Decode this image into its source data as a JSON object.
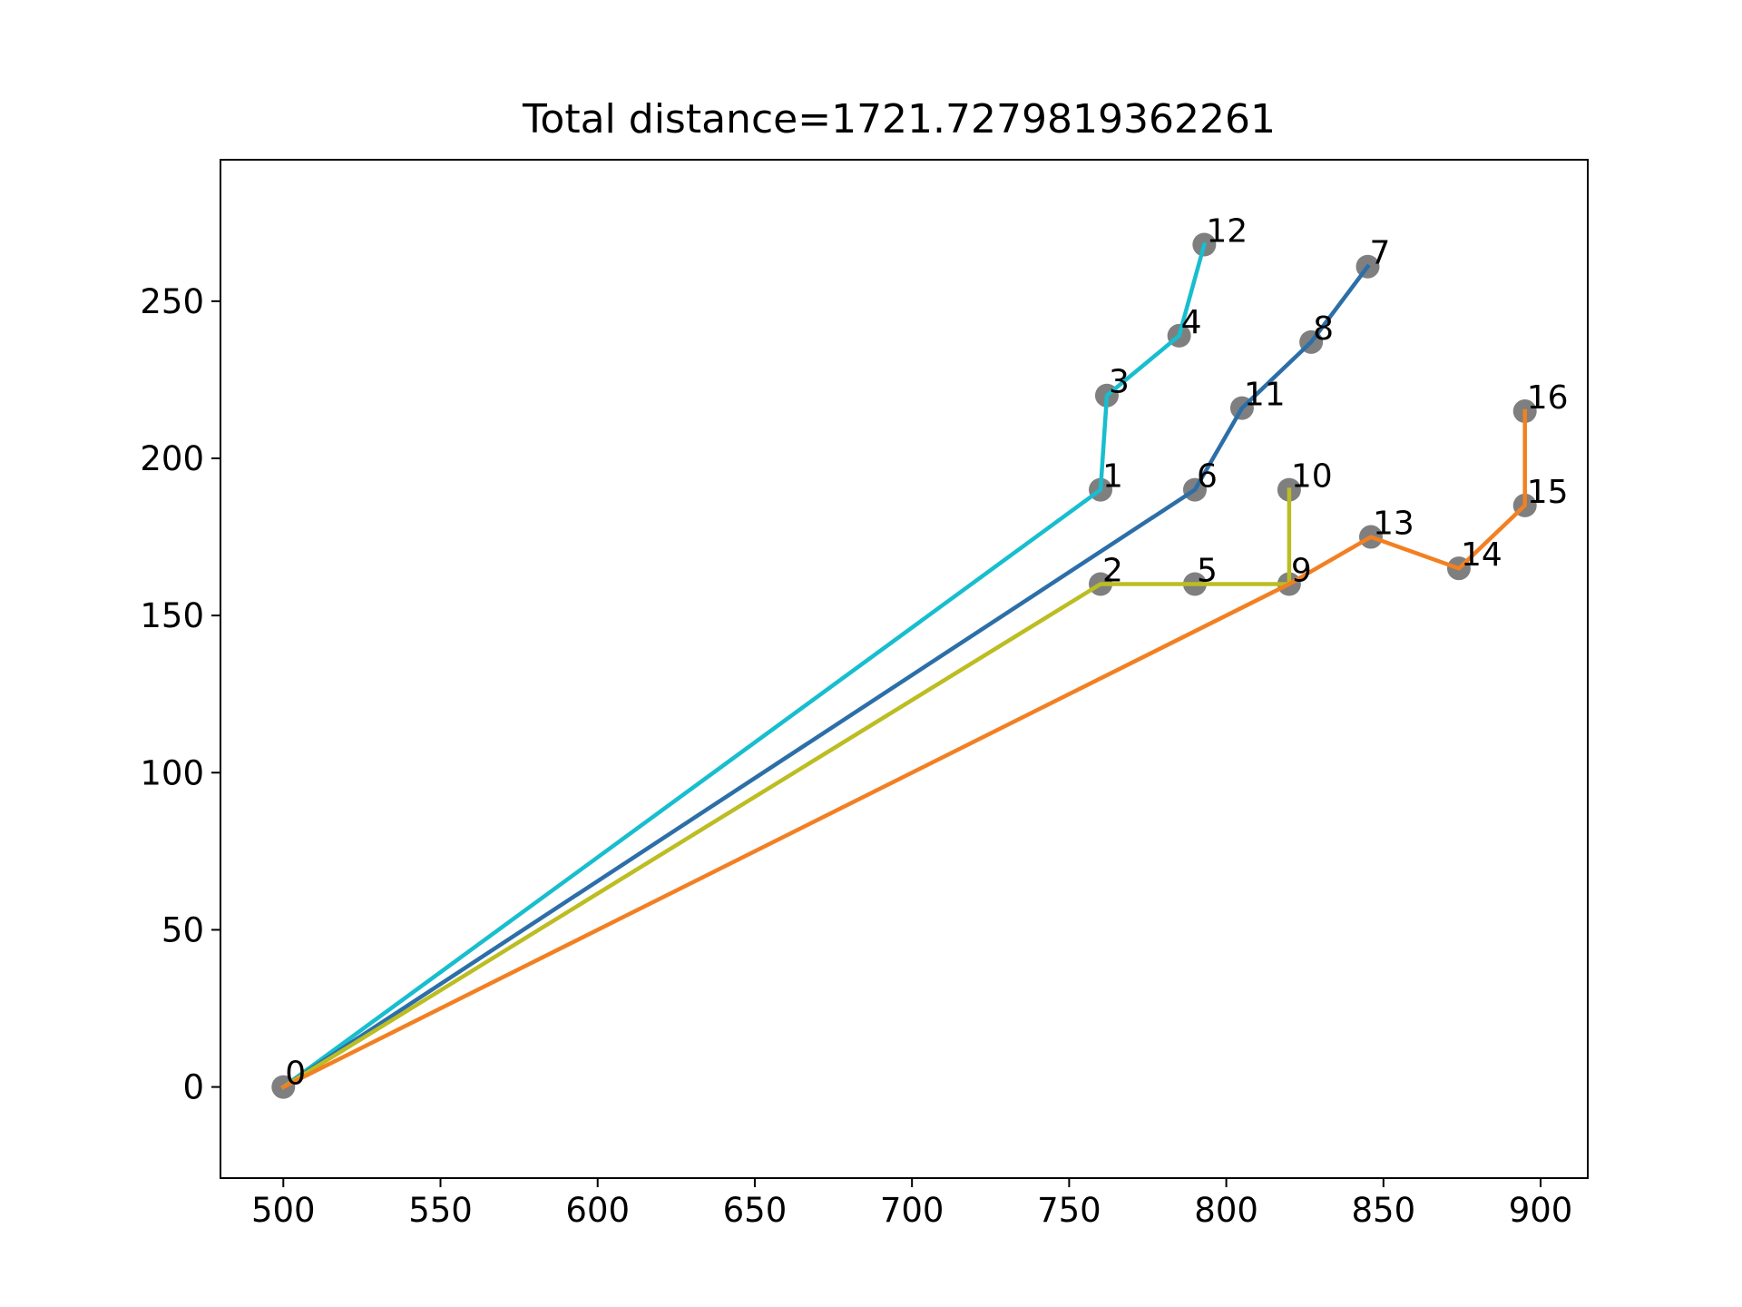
{
  "chart_data": {
    "type": "line",
    "title": "Total distance=1721.7279819362261",
    "xlabel": "",
    "ylabel": "",
    "xlim": [
      480,
      915
    ],
    "ylim": [
      -29,
      295
    ],
    "x_ticks": [
      500,
      550,
      600,
      650,
      700,
      750,
      800,
      850,
      900
    ],
    "y_ticks": [
      0,
      50,
      100,
      150,
      200,
      250
    ],
    "grid": false,
    "legend": "none",
    "point_color": "#7f7f7f",
    "points": [
      {
        "label": "0",
        "x": 500,
        "y": 0
      },
      {
        "label": "1",
        "x": 760,
        "y": 190
      },
      {
        "label": "2",
        "x": 760,
        "y": 160
      },
      {
        "label": "3",
        "x": 762,
        "y": 220
      },
      {
        "label": "4",
        "x": 785,
        "y": 239
      },
      {
        "label": "5",
        "x": 790,
        "y": 160
      },
      {
        "label": "6",
        "x": 790,
        "y": 190
      },
      {
        "label": "7",
        "x": 845,
        "y": 261
      },
      {
        "label": "8",
        "x": 827,
        "y": 237
      },
      {
        "label": "9",
        "x": 820,
        "y": 160
      },
      {
        "label": "10",
        "x": 820,
        "y": 190
      },
      {
        "label": "11",
        "x": 805,
        "y": 216
      },
      {
        "label": "12",
        "x": 793,
        "y": 268
      },
      {
        "label": "13",
        "x": 846,
        "y": 175
      },
      {
        "label": "14",
        "x": 874,
        "y": 165
      },
      {
        "label": "15",
        "x": 895,
        "y": 185
      },
      {
        "label": "16",
        "x": 895,
        "y": 215
      }
    ],
    "routes": [
      {
        "color": "#17becf",
        "stops": [
          "0",
          "1",
          "3",
          "4",
          "12"
        ]
      },
      {
        "color": "#2c6fa8",
        "stops": [
          "0",
          "6",
          "11",
          "8",
          "7"
        ]
      },
      {
        "color": "#bcbd22",
        "stops": [
          "0",
          "2",
          "5",
          "9",
          "10"
        ]
      },
      {
        "color": "#f28022",
        "stops": [
          "0",
          "9",
          "13",
          "14",
          "15",
          "16"
        ]
      }
    ]
  }
}
